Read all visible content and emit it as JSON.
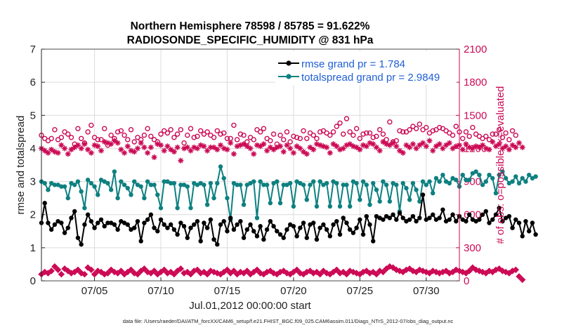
{
  "chart_data": {
    "type": "line",
    "title_line1": "Northern Hemisphere 78598 / 85785 = 91.622%",
    "title_line2": "RADIOSONDE_SPECIFIC_HUMIDITY @ 831 hPa",
    "xlabel": "Jul.01,2012 00:00:00 start",
    "ylabel": "rmse and totalspread",
    "ylabel_right": "# of obs: o=possible; ×=evaluated",
    "ylim": [
      0,
      7
    ],
    "ylim_right": [
      0,
      2100
    ],
    "yticks": [
      "0",
      "1",
      "2",
      "3",
      "4",
      "5",
      "6",
      "7"
    ],
    "yticks_right": [
      "0",
      "300",
      "600",
      "900",
      "1200",
      "1500",
      "1800",
      "2100"
    ],
    "xlim": [
      1.0,
      32.5
    ],
    "xtick_positions": [
      5,
      10,
      15,
      20,
      25,
      30
    ],
    "xtick_labels": [
      "07/05",
      "07/10",
      "07/15",
      "07/20",
      "07/25",
      "07/30"
    ],
    "grid": true,
    "legend_position": "top-right",
    "footnote": "data file: /Users/raeder/DAI/ATM_forcXX/CAM6_setup/f.e21.FHIST_BGC.f09_025.CAM6assim.011/Diags_NTrS_2012-07/obs_diag_output.nc",
    "colors": {
      "rmse": "#000000",
      "totalspread": "#0e8080",
      "obs": "#cc0a55",
      "legend_text": "#1f5fd6"
    },
    "x_start": 1.0,
    "x_step": 0.25,
    "series": [
      {
        "name": "rmse grand pr = 1.784",
        "style": "line-dot",
        "values": [
          1.75,
          2.35,
          1.75,
          1.55,
          1.7,
          1.8,
          1.75,
          1.45,
          1.6,
          1.9,
          2.1,
          1.3,
          1.1,
          1.7,
          2.0,
          1.8,
          1.6,
          1.75,
          1.85,
          1.65,
          1.75,
          1.75,
          1.7,
          1.55,
          1.8,
          1.75,
          1.7,
          1.55,
          1.6,
          1.8,
          1.2,
          1.75,
          1.85,
          2.0,
          1.6,
          1.5,
          1.85,
          1.7,
          1.6,
          1.7,
          1.55,
          1.4,
          1.75,
          1.65,
          1.3,
          1.6,
          1.7,
          1.8,
          1.2,
          1.75,
          1.6,
          1.85,
          1.25,
          1.1,
          1.7,
          1.8,
          1.5,
          1.9,
          1.55,
          1.7,
          1.8,
          1.3,
          1.55,
          1.7,
          1.5,
          1.35,
          1.65,
          1.25,
          1.55,
          1.8,
          1.65,
          1.5,
          1.4,
          1.3,
          1.55,
          1.7,
          1.65,
          1.35,
          1.6,
          1.75,
          1.3,
          1.7,
          1.75,
          1.25,
          1.6,
          1.7,
          1.55,
          1.35,
          1.7,
          1.8,
          1.4,
          1.9,
          1.75,
          1.55,
          1.45,
          1.6,
          1.85,
          1.4,
          1.95,
          1.7,
          1.2,
          1.95,
          1.9,
          1.85,
          1.95,
          1.9,
          2.0,
          1.85,
          2.05,
          1.9,
          1.8,
          1.85,
          1.95,
          1.8,
          1.9,
          2.6,
          1.85,
          1.9,
          2.0,
          1.85,
          1.9,
          2.15,
          1.8,
          1.85,
          2.0,
          1.8,
          1.95,
          1.85,
          1.8,
          2.0,
          1.85,
          1.8,
          1.85,
          2.0,
          2.1,
          1.75,
          1.85,
          2.0,
          2.2,
          1.8,
          1.9,
          1.95,
          1.6,
          1.85,
          1.75,
          1.35,
          1.8,
          1.5,
          1.75,
          1.4
        ]
      },
      {
        "name": "totalspread grand pr = 2.9849",
        "style": "line-dot",
        "values": [
          3.0,
          2.95,
          2.75,
          2.95,
          2.9,
          2.9,
          2.85,
          2.85,
          2.5,
          2.95,
          2.9,
          3.0,
          2.7,
          2.2,
          3.05,
          2.95,
          2.85,
          2.6,
          3.05,
          3.0,
          2.95,
          2.75,
          3.3,
          2.5,
          3.0,
          2.9,
          2.8,
          2.6,
          3.0,
          2.9,
          2.85,
          2.5,
          3.0,
          2.9,
          2.9,
          2.6,
          2.2,
          3.0,
          3.0,
          2.95,
          2.95,
          2.2,
          2.9,
          2.9,
          2.85,
          2.2,
          2.95,
          2.9,
          2.95,
          2.9,
          2.3,
          2.95,
          2.5,
          2.95,
          3.45,
          3.1,
          2.5,
          1.85,
          2.95,
          2.9,
          2.9,
          2.3,
          2.9,
          2.95,
          3.0,
          1.9,
          3.0,
          2.9,
          2.9,
          2.35,
          2.95,
          3.0,
          2.35,
          2.9,
          2.9,
          2.95,
          2.25,
          3.0,
          2.95,
          2.9,
          2.45,
          2.9,
          3.0,
          2.25,
          3.0,
          2.9,
          2.95,
          2.25,
          3.0,
          2.95,
          2.25,
          2.9,
          2.9,
          2.25,
          3.0,
          2.95,
          2.45,
          3.0,
          2.9,
          2.3,
          2.95,
          2.75,
          2.4,
          3.0,
          2.9,
          2.4,
          2.95,
          2.9,
          2.1,
          2.95,
          2.8,
          2.45,
          2.95,
          2.75,
          2.4,
          3.0,
          2.9,
          3.0,
          2.65,
          3.1,
          3.0,
          3.2,
          3.0,
          2.95,
          3.1,
          3.05,
          2.85,
          3.2,
          3.05,
          3.05,
          3.25,
          3.3,
          3.2,
          2.9,
          3.0,
          3.2,
          3.1,
          2.65,
          3.2,
          3.3,
          3.1,
          2.95,
          3.0,
          3.15,
          2.95,
          3.1,
          3.0,
          3.2,
          3.1,
          3.15
        ]
      },
      {
        "name": "obs possible",
        "style": "circle",
        "axis": "right",
        "values": [
          1320,
          1290,
          1270,
          1290,
          1370,
          1280,
          1300,
          1350,
          1330,
          1300,
          1240,
          1380,
          1290,
          1250,
          1350,
          1410,
          1300,
          1280,
          1280,
          1380,
          1230,
          1320,
          1290,
          1350,
          1360,
          1320,
          1280,
          1370,
          1260,
          1300,
          1280,
          1320,
          1380,
          1310,
          1280,
          1260,
          1330,
          1360,
          1340,
          1370,
          1300,
          1330,
          1370,
          1250,
          1320,
          1380,
          1300,
          1310,
          1360,
          1330,
          1350,
          1320,
          1300,
          1360,
          1330,
          1340,
          1290,
          1290,
          1410,
          1280,
          1330,
          1320,
          1260,
          1300,
          1280,
          1370,
          1350,
          1380,
          1290,
          1270,
          1330,
          1240,
          1320,
          1280,
          1350,
          1260,
          1310,
          1300,
          1290,
          1360,
          1290,
          1340,
          1320,
          1290,
          1350,
          1360,
          1340,
          1320,
          1350,
          1400,
          1430,
          1330,
          1470,
          1350,
          1320,
          1380,
          1290,
          1330,
          1340,
          1340,
          1300,
          1310,
          1370,
          1330,
          1280,
          1440,
          1260,
          1270,
          1360,
          1350,
          1350,
          1370,
          1400,
          1380,
          1420,
          1370,
          1390,
          1340,
          1360,
          1370,
          1390,
          1380,
          1360,
          1340,
          1320,
          1400,
          1350,
          1290,
          1350,
          1310,
          1390,
          1330,
          1310,
          1290,
          1310,
          1280,
          1330,
          1330,
          1370,
          1300,
          1340,
          1280,
          1360,
          1320
        ]
      },
      {
        "name": "obs evaluated",
        "style": "asterisk",
        "axis": "right",
        "values": [
          1200,
          1180,
          1160,
          1190,
          1170,
          1160,
          1230,
          1200,
          1150,
          1190,
          1210,
          1230,
          1200,
          1240,
          1190,
          1160,
          1230,
          1220,
          1180,
          1260,
          1250,
          1240,
          1270,
          1250,
          1190,
          1160,
          1220,
          1180,
          1170,
          1200,
          1250,
          1210,
          1160,
          1210,
          1120,
          1240,
          1230,
          1180,
          1220,
          1190,
          1170,
          1210,
          1090,
          1200,
          1210,
          1180,
          1210,
          1200,
          1230,
          1220,
          1180,
          1210,
          1210,
          1190,
          1230,
          1200,
          1190,
          1250,
          1150,
          1220,
          1230,
          1240,
          1220,
          1200,
          1150,
          1230,
          1220,
          1240,
          1180,
          1210,
          1190,
          1210,
          1220,
          1170,
          1230,
          1200,
          1160,
          1220,
          1200,
          1170,
          1150,
          1210,
          1190,
          1240,
          1230,
          1220,
          1210,
          1160,
          1240,
          1220,
          1190,
          1200,
          1230,
          1240,
          1220,
          1210,
          1190,
          1230,
          1220,
          1250,
          1240,
          1210,
          1180,
          1260,
          1240,
          1230,
          1250,
          1220,
          1180,
          1160,
          1230,
          1210,
          1240,
          1200,
          1230,
          1250,
          1220,
          1270,
          1180,
          1220,
          1240,
          1200,
          1230,
          1250,
          1200,
          1220,
          1230,
          1190,
          1240,
          1210,
          1200,
          1220,
          1210,
          1230,
          1200,
          1190,
          1260,
          1220,
          1240,
          1200,
          1220,
          1190,
          1230,
          1210,
          1250,
          1210
        ]
      },
      {
        "name": "obs low",
        "style": "diamond",
        "axis": "right",
        "values": [
          60,
          80,
          70,
          90,
          130,
          100,
          60,
          110,
          90,
          70,
          80,
          100,
          70,
          60,
          120,
          100,
          60,
          90,
          80,
          60,
          70,
          100,
          80,
          70,
          90,
          60,
          80,
          100,
          70,
          60,
          90,
          110,
          80,
          70,
          90,
          60,
          80,
          100,
          70,
          80,
          60,
          90,
          110,
          70,
          80,
          60,
          90,
          100,
          70,
          80,
          60,
          90,
          80,
          70,
          60,
          80,
          100,
          70,
          90,
          60,
          80,
          70,
          90,
          60,
          80,
          100,
          70,
          60,
          80,
          90,
          70,
          60,
          80,
          90,
          70,
          60,
          80,
          100,
          70,
          60,
          80,
          90,
          70,
          80,
          60,
          90,
          70,
          60,
          80,
          100,
          70,
          80,
          60,
          90,
          80,
          70,
          60,
          80,
          90,
          70,
          80,
          60,
          90,
          80,
          110,
          130,
          120,
          100,
          90,
          80,
          100,
          110,
          90,
          80,
          100,
          90,
          80,
          70,
          90,
          80,
          70,
          80,
          90,
          70,
          80,
          100,
          90,
          80,
          70,
          90,
          120,
          100,
          90,
          80,
          70,
          90,
          80,
          100,
          110,
          90,
          80,
          70,
          90,
          100,
          40,
          10
        ]
      }
    ]
  }
}
